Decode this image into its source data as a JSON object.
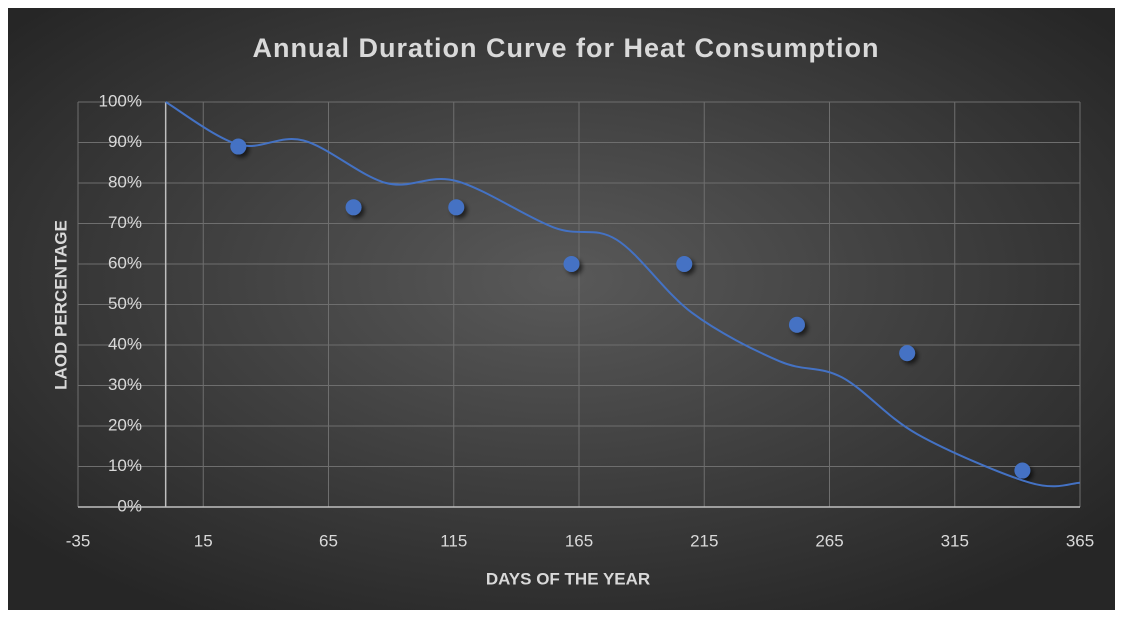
{
  "chart_data": {
    "type": "scatter",
    "title": "Annual Duration Curve for Heat Consumption",
    "x_label": "DAYS OF THE YEAR",
    "y_label": "LAOD PERCENTAGE",
    "xlim": [
      -35,
      365
    ],
    "xticks": [
      -35,
      15,
      65,
      115,
      165,
      215,
      265,
      315,
      365
    ],
    "ylim": [
      0,
      100
    ],
    "yticks": [
      {
        "value": 0,
        "label": "0%"
      },
      {
        "value": 10,
        "label": "10%"
      },
      {
        "value": 20,
        "label": "20%"
      },
      {
        "value": 30,
        "label": "30%"
      },
      {
        "value": 40,
        "label": "40%"
      },
      {
        "value": 50,
        "label": "50%"
      },
      {
        "value": 60,
        "label": "60%"
      },
      {
        "value": 70,
        "label": "70%"
      },
      {
        "value": 80,
        "label": "80%"
      },
      {
        "value": 90,
        "label": "90%"
      },
      {
        "value": 100,
        "label": "100%"
      }
    ],
    "grid": true,
    "series": [
      {
        "type": "scatter",
        "color": "#4472c4",
        "x": [
          29,
          75,
          116,
          162,
          207,
          252,
          296,
          342
        ],
        "values": [
          89,
          74,
          74,
          60,
          60,
          45,
          38,
          9
        ]
      },
      {
        "type": "line",
        "color": "#4472c4",
        "smooth": true,
        "x": [
          0,
          29,
          55,
          88,
          116,
          155,
          180,
          210,
          245,
          270,
          300,
          345,
          365
        ],
        "values": [
          100,
          89.5,
          90.5,
          80,
          80.5,
          69,
          66,
          48,
          36,
          32,
          18,
          6,
          6
        ]
      }
    ]
  }
}
